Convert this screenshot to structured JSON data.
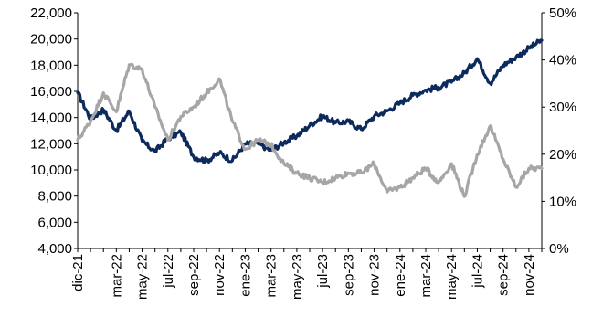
{
  "chart_data": {
    "type": "line",
    "title": "",
    "xlabel": "",
    "ylabel": "",
    "grid": false,
    "legend": "none",
    "x_tick_labels": [
      "dic-21",
      "mar-22",
      "may-22",
      "jul-22",
      "sep-22",
      "nov-22",
      "ene-23",
      "mar-23",
      "may-23",
      "jul-23",
      "sep-23",
      "nov-23",
      "ene-24",
      "mar-24",
      "may-24",
      "jul-24",
      "sep-24",
      "nov-24"
    ],
    "y_left": {
      "ylim": [
        4000,
        22000
      ],
      "ticks": [
        4000,
        6000,
        8000,
        10000,
        12000,
        14000,
        16000,
        18000,
        20000,
        22000
      ],
      "tick_labels": [
        "4,000",
        "6,000",
        "8,000",
        "10,000",
        "12,000",
        "14,000",
        "16,000",
        "18,000",
        "20,000",
        "22,000"
      ]
    },
    "y_right": {
      "ylim": [
        0,
        50
      ],
      "ticks": [
        0,
        10,
        20,
        30,
        40,
        50
      ],
      "tick_labels": [
        "0%",
        "10%",
        "20%",
        "30%",
        "40%",
        "50%"
      ]
    },
    "x_range": [
      "2021-12",
      "2024-12"
    ],
    "series": [
      {
        "axis": "left",
        "color": "#0d2a5c",
        "points": [
          [
            "2021-12",
            15900
          ],
          [
            "2022-01",
            13900
          ],
          [
            "2022-02",
            14600
          ],
          [
            "2022-03",
            13000
          ],
          [
            "2022-04",
            14500
          ],
          [
            "2022-05",
            12200
          ],
          [
            "2022-06",
            11400
          ],
          [
            "2022-07",
            12400
          ],
          [
            "2022-08",
            12900
          ],
          [
            "2022-09",
            11000
          ],
          [
            "2022-10",
            10700
          ],
          [
            "2022-11",
            11300
          ],
          [
            "2022-12",
            10700
          ],
          [
            "2023-01",
            12000
          ],
          [
            "2023-02",
            12000
          ],
          [
            "2023-03",
            11500
          ],
          [
            "2023-04",
            12100
          ],
          [
            "2023-05",
            12600
          ],
          [
            "2023-06",
            13400
          ],
          [
            "2023-07",
            14100
          ],
          [
            "2023-08",
            13600
          ],
          [
            "2023-09",
            13700
          ],
          [
            "2023-10",
            13100
          ],
          [
            "2023-11",
            14100
          ],
          [
            "2023-12",
            14500
          ],
          [
            "2024-01",
            15100
          ],
          [
            "2024-02",
            15700
          ],
          [
            "2024-03",
            16100
          ],
          [
            "2024-04",
            16300
          ],
          [
            "2024-05",
            16700
          ],
          [
            "2024-06",
            17400
          ],
          [
            "2024-07",
            18500
          ],
          [
            "2024-08",
            16600
          ],
          [
            "2024-09",
            18000
          ],
          [
            "2024-10",
            18600
          ],
          [
            "2024-11",
            19300
          ],
          [
            "2024-12",
            19900
          ]
        ]
      },
      {
        "axis": "right",
        "color": "#a6a6a6",
        "points": [
          [
            "2021-12",
            23
          ],
          [
            "2022-01",
            27
          ],
          [
            "2022-02",
            33
          ],
          [
            "2022-03",
            29
          ],
          [
            "2022-04",
            39
          ],
          [
            "2022-05",
            38
          ],
          [
            "2022-06",
            30
          ],
          [
            "2022-07",
            23
          ],
          [
            "2022-08",
            28
          ],
          [
            "2022-09",
            30
          ],
          [
            "2022-10",
            33
          ],
          [
            "2022-11",
            36
          ],
          [
            "2022-12",
            27
          ],
          [
            "2023-01",
            21
          ],
          [
            "2023-02",
            23
          ],
          [
            "2023-03",
            22
          ],
          [
            "2023-04",
            18
          ],
          [
            "2023-05",
            16
          ],
          [
            "2023-06",
            15
          ],
          [
            "2023-07",
            14
          ],
          [
            "2023-08",
            15
          ],
          [
            "2023-09",
            16
          ],
          [
            "2023-10",
            16
          ],
          [
            "2023-11",
            18
          ],
          [
            "2023-12",
            12
          ],
          [
            "2024-01",
            13
          ],
          [
            "2024-02",
            15
          ],
          [
            "2024-03",
            17
          ],
          [
            "2024-04",
            14
          ],
          [
            "2024-05",
            18
          ],
          [
            "2024-06",
            11
          ],
          [
            "2024-07",
            20
          ],
          [
            "2024-08",
            26
          ],
          [
            "2024-09",
            19
          ],
          [
            "2024-10",
            13
          ],
          [
            "2024-11",
            17
          ],
          [
            "2024-12",
            17
          ]
        ]
      }
    ]
  }
}
